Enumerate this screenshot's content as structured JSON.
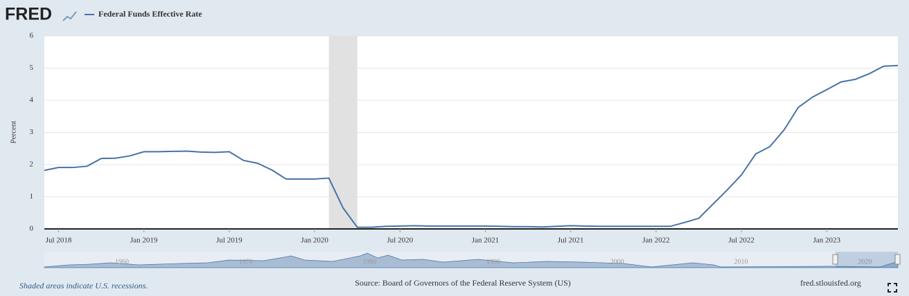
{
  "logo": "FRED",
  "chart_data": {
    "type": "line",
    "x": [
      "2018-06",
      "2018-07",
      "2018-08",
      "2018-09",
      "2018-10",
      "2018-11",
      "2018-12",
      "2019-01",
      "2019-02",
      "2019-03",
      "2019-04",
      "2019-05",
      "2019-06",
      "2019-07",
      "2019-08",
      "2019-09",
      "2019-10",
      "2019-11",
      "2019-12",
      "2020-01",
      "2020-02",
      "2020-03",
      "2020-04",
      "2020-05",
      "2020-06",
      "2020-07",
      "2020-08",
      "2020-09",
      "2020-10",
      "2020-11",
      "2020-12",
      "2021-01",
      "2021-02",
      "2021-03",
      "2021-04",
      "2021-05",
      "2021-06",
      "2021-07",
      "2021-08",
      "2021-09",
      "2021-10",
      "2021-11",
      "2021-12",
      "2022-01",
      "2022-02",
      "2022-03",
      "2022-04",
      "2022-05",
      "2022-06",
      "2022-07",
      "2022-08",
      "2022-09",
      "2022-10",
      "2022-11",
      "2022-12",
      "2023-01",
      "2023-02",
      "2023-03",
      "2023-04",
      "2023-05",
      "2023-06"
    ],
    "series": [
      {
        "name": "Federal Funds Effective Rate",
        "color": "#4572a7",
        "values": [
          1.82,
          1.91,
          1.91,
          1.95,
          2.19,
          2.2,
          2.27,
          2.4,
          2.4,
          2.41,
          2.42,
          2.39,
          2.38,
          2.4,
          2.13,
          2.04,
          1.83,
          1.55,
          1.55,
          1.55,
          1.58,
          0.65,
          0.05,
          0.05,
          0.08,
          0.09,
          0.1,
          0.09,
          0.09,
          0.09,
          0.09,
          0.09,
          0.08,
          0.07,
          0.07,
          0.06,
          0.08,
          0.1,
          0.09,
          0.08,
          0.08,
          0.08,
          0.08,
          0.08,
          0.08,
          0.2,
          0.33,
          0.77,
          1.21,
          1.68,
          2.33,
          2.56,
          3.08,
          3.78,
          4.1,
          4.33,
          4.57,
          4.65,
          4.83,
          5.06,
          5.08
        ]
      }
    ],
    "xlim": [
      "2018-06",
      "2023-06"
    ],
    "xticks": [
      {
        "value": "2018-07",
        "label": "Jul 2018"
      },
      {
        "value": "2019-01",
        "label": "Jan 2019"
      },
      {
        "value": "2019-07",
        "label": "Jul 2019"
      },
      {
        "value": "2020-01",
        "label": "Jan 2020"
      },
      {
        "value": "2020-07",
        "label": "Jul 2020"
      },
      {
        "value": "2021-01",
        "label": "Jan 2021"
      },
      {
        "value": "2021-07",
        "label": "Jul 2021"
      },
      {
        "value": "2022-01",
        "label": "Jan 2022"
      },
      {
        "value": "2022-07",
        "label": "Jul 2022"
      },
      {
        "value": "2023-01",
        "label": "Jan 2023"
      }
    ],
    "ylim": [
      0,
      6
    ],
    "yticks": [
      0,
      1,
      2,
      3,
      4,
      5,
      6
    ],
    "ylabel": "Percent",
    "grid": true,
    "recessions": [
      [
        "2020-02",
        "2020-04"
      ]
    ],
    "navigator_labels": [
      "1960",
      "1970",
      "1980",
      "1990",
      "2000",
      "2010",
      "2020"
    ],
    "recession_note": "Shaded areas indicate U.S. recessions.",
    "source": "Source: Board of Governors of the Federal Reserve System (US)",
    "site": "fred.stlouisfed.org"
  }
}
